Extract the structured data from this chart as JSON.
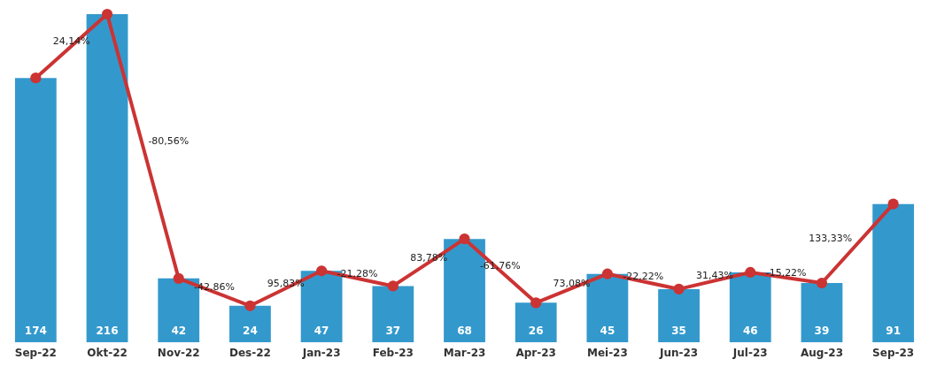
{
  "chart_data": {
    "type": "bar",
    "categories": [
      "Sep-22",
      "Okt-22",
      "Nov-22",
      "Des-22",
      "Jan-23",
      "Feb-23",
      "Mar-23",
      "Apr-23",
      "Mei-23",
      "Jun-23",
      "Jul-23",
      "Aug-23",
      "Sep-23"
    ],
    "series": [
      {
        "color": "#3399cc",
        "values": [
          174,
          216,
          42,
          24,
          47,
          37,
          68,
          26,
          45,
          35,
          46,
          39,
          91
        ],
        "value_labels": [
          "174",
          "216",
          "42",
          "24",
          "47",
          "37",
          "68",
          "26",
          "45",
          "35",
          "46",
          "39",
          "91"
        ]
      },
      {
        "type": "line",
        "color": "#cc3333",
        "marker": "circle",
        "values": [
          174,
          216,
          42,
          24,
          47,
          37,
          68,
          26,
          45,
          35,
          46,
          39,
          91
        ]
      }
    ],
    "annotations": [
      "24,14%",
      "-80,56%",
      "-42,86%",
      "95,83%",
      "-21,28%",
      "83,78%",
      "-61,76%",
      "73,08%",
      "-22,22%",
      "31,43%",
      "-15,22%",
      "133,33%"
    ],
    "grid": false
  }
}
